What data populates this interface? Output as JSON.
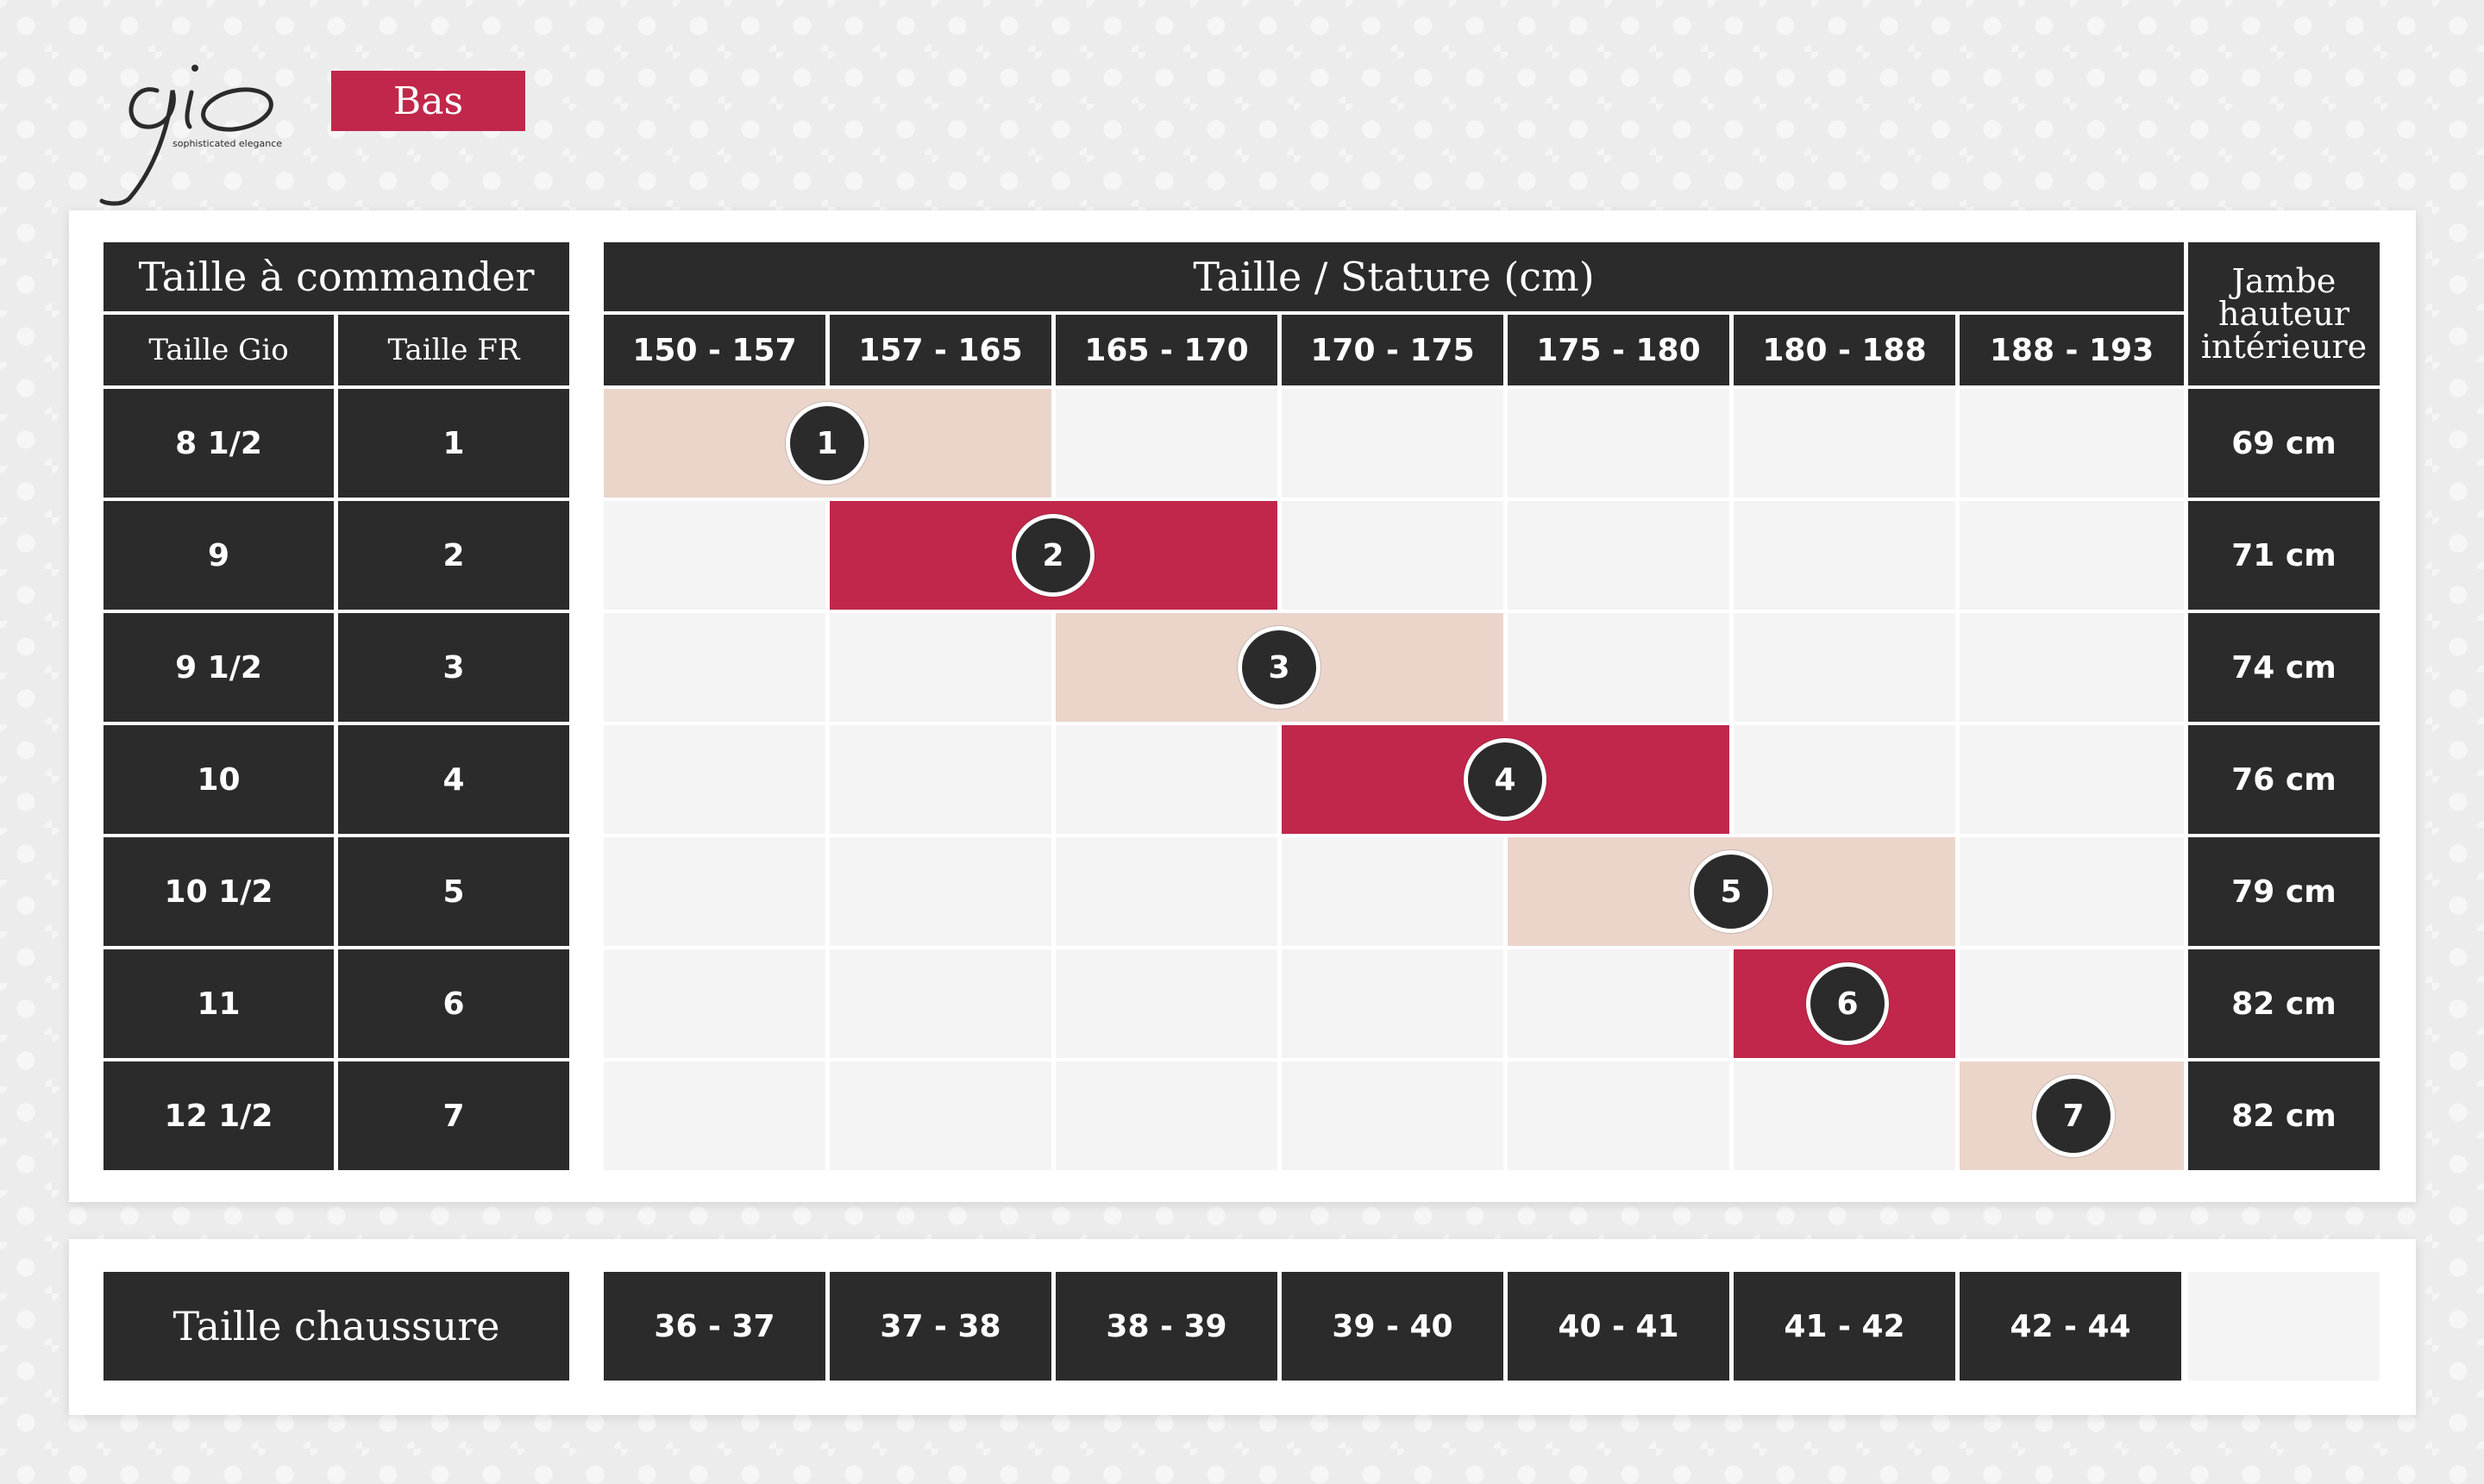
{
  "brand": {
    "logo_text": "gio",
    "tagline": "sophisticated elegance",
    "category": "Bas"
  },
  "table": {
    "order_header": "Taille à commander",
    "gio_header": "Taille Gio",
    "fr_header": "Taille FR",
    "stature_header": "Taille / Stature (cm)",
    "stature_ranges": [
      "150 - 157",
      "157 - 165",
      "165 - 170",
      "170 - 175",
      "175 - 180",
      "180 - 188",
      "188 - 193"
    ],
    "inseam_header_lines": [
      "Jambe",
      "hauteur",
      "intérieure"
    ],
    "rows": [
      {
        "gio": "8 1/2",
        "fr": "1",
        "badge": "1",
        "inseam": "69 cm",
        "span_start": 0,
        "span_cols": 2,
        "fill": "peach"
      },
      {
        "gio": "9",
        "fr": "2",
        "badge": "2",
        "inseam": "71 cm",
        "span_start": 1,
        "span_cols": 2,
        "fill": "crimson"
      },
      {
        "gio": "9 1/2",
        "fr": "3",
        "badge": "3",
        "inseam": "74 cm",
        "span_start": 2,
        "span_cols": 2,
        "fill": "peach"
      },
      {
        "gio": "10",
        "fr": "4",
        "badge": "4",
        "inseam": "76 cm",
        "span_start": 3,
        "span_cols": 2,
        "fill": "crimson"
      },
      {
        "gio": "10 1/2",
        "fr": "5",
        "badge": "5",
        "inseam": "79 cm",
        "span_start": 4,
        "span_cols": 2,
        "fill": "peach"
      },
      {
        "gio": "11",
        "fr": "6",
        "badge": "6",
        "inseam": "82 cm",
        "span_start": 5,
        "span_cols": 1,
        "fill": "crimson"
      },
      {
        "gio": "12 1/2",
        "fr": "7",
        "badge": "7",
        "inseam": "82 cm",
        "span_start": 6,
        "span_cols": 1,
        "fill": "peach"
      }
    ]
  },
  "shoe": {
    "label": "Taille chaussure",
    "sizes": [
      "36 - 37",
      "37 - 38",
      "38 - 39",
      "39 - 40",
      "40 - 41",
      "41 - 42",
      "42 - 44"
    ]
  },
  "colors": {
    "dark": "#2b2b2b",
    "accent_crimson": "#c1274a",
    "accent_peach": "#ebd5cb",
    "empty_cell": "#f4f4f4"
  }
}
